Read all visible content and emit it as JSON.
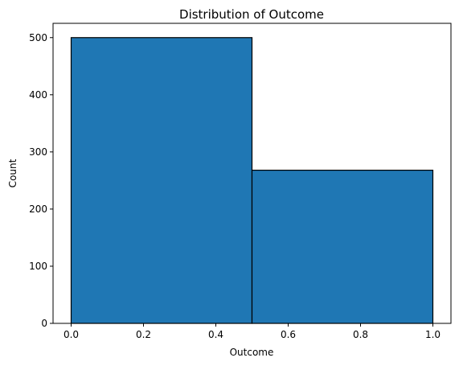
{
  "chart_data": {
    "type": "bar",
    "title": "Distribution of Outcome",
    "xlabel": "Outcome",
    "ylabel": "Count",
    "bins": [
      {
        "x_start": 0.0,
        "x_end": 0.5,
        "value": 500
      },
      {
        "x_start": 0.5,
        "x_end": 1.0,
        "value": 268
      }
    ],
    "xlim": [
      -0.05,
      1.05
    ],
    "ylim": [
      0,
      525
    ],
    "xticks": [
      0.0,
      0.2,
      0.4,
      0.6,
      0.8,
      1.0
    ],
    "xtick_labels": [
      "0.0",
      "0.2",
      "0.4",
      "0.6",
      "0.8",
      "1.0"
    ],
    "yticks": [
      0,
      100,
      200,
      300,
      400,
      500
    ],
    "ytick_labels": [
      "0",
      "100",
      "200",
      "300",
      "400",
      "500"
    ],
    "grid": false,
    "bar_color": "#1f77b4",
    "edge_color": "#000000"
  }
}
